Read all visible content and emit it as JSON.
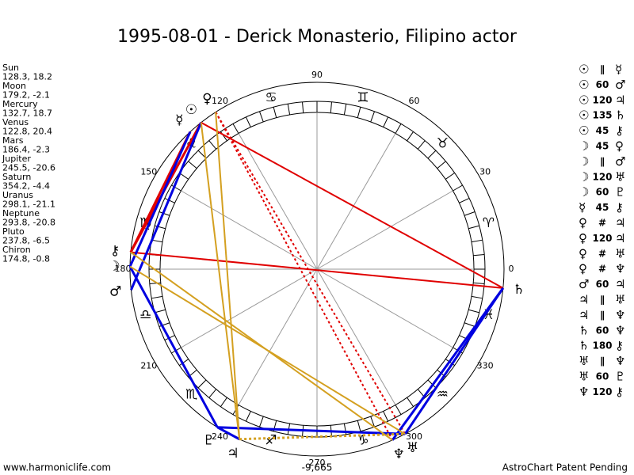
{
  "title": "1995-08-01 - Derick Monasterio, Filipino actor",
  "planets": [
    {
      "name": "Sun",
      "position": "128.3, 18.2",
      "glyph": "☉"
    },
    {
      "name": "Moon",
      "position": "179.2, -2.1",
      "glyph": "☽"
    },
    {
      "name": "Mercury",
      "position": "132.7, 18.7",
      "glyph": "☿"
    },
    {
      "name": "Venus",
      "position": "122.8, 20.4",
      "glyph": "♀"
    },
    {
      "name": "Mars",
      "position": "186.4, -2.3",
      "glyph": "♂"
    },
    {
      "name": "Jupiter",
      "position": "245.5, -20.6",
      "glyph": "♃"
    },
    {
      "name": "Saturn",
      "position": "354.2, -4.4",
      "glyph": "♄"
    },
    {
      "name": "Uranus",
      "position": "298.1, -21.1",
      "glyph": "♅"
    },
    {
      "name": "Neptune",
      "position": "293.8, -20.8",
      "glyph": "♆"
    },
    {
      "name": "Pluto",
      "position": "237.8, -6.5",
      "glyph": "♇"
    },
    {
      "name": "Chiron",
      "position": "174.8, -0.8",
      "glyph": "⚷"
    }
  ],
  "signs": [
    "♈",
    "♉",
    "♊",
    "♋",
    "♌",
    "♍",
    "♎",
    "♏",
    "♐",
    "♑",
    "♒",
    "♓"
  ],
  "degree_ticks": [
    0,
    30,
    60,
    90,
    120,
    150,
    180,
    210,
    240,
    270,
    300,
    330
  ],
  "aspects": [
    [
      "☉",
      "∥",
      "☿"
    ],
    [
      "☉",
      "60",
      "♂"
    ],
    [
      "☉",
      "120",
      "♃"
    ],
    [
      "☉",
      "135",
      "♄"
    ],
    [
      "☉",
      "45",
      "⚷"
    ],
    [
      "☽",
      "45",
      "♀"
    ],
    [
      "☽",
      "∥",
      "♂"
    ],
    [
      "☽",
      "120",
      "♅"
    ],
    [
      "☽",
      "60",
      "♇"
    ],
    [
      "☿",
      "45",
      "⚷"
    ],
    [
      "♀",
      "#",
      "♃"
    ],
    [
      "♀",
      "120",
      "♃"
    ],
    [
      "♀",
      "#",
      "♅"
    ],
    [
      "♀",
      "#",
      "♆"
    ],
    [
      "♂",
      "60",
      "♃"
    ],
    [
      "♃",
      "∥",
      "♅"
    ],
    [
      "♃",
      "∥",
      "♆"
    ],
    [
      "♄",
      "60",
      "♆"
    ],
    [
      "♄",
      "180",
      "⚷"
    ],
    [
      "♅",
      "∥",
      "♆"
    ],
    [
      "♅",
      "60",
      "♇"
    ],
    [
      "♆",
      "120",
      "⚷"
    ]
  ],
  "footer": {
    "left": "www.harmoniclife.com",
    "center": "-9,665",
    "right": "AstroChart Patent Pending"
  }
}
